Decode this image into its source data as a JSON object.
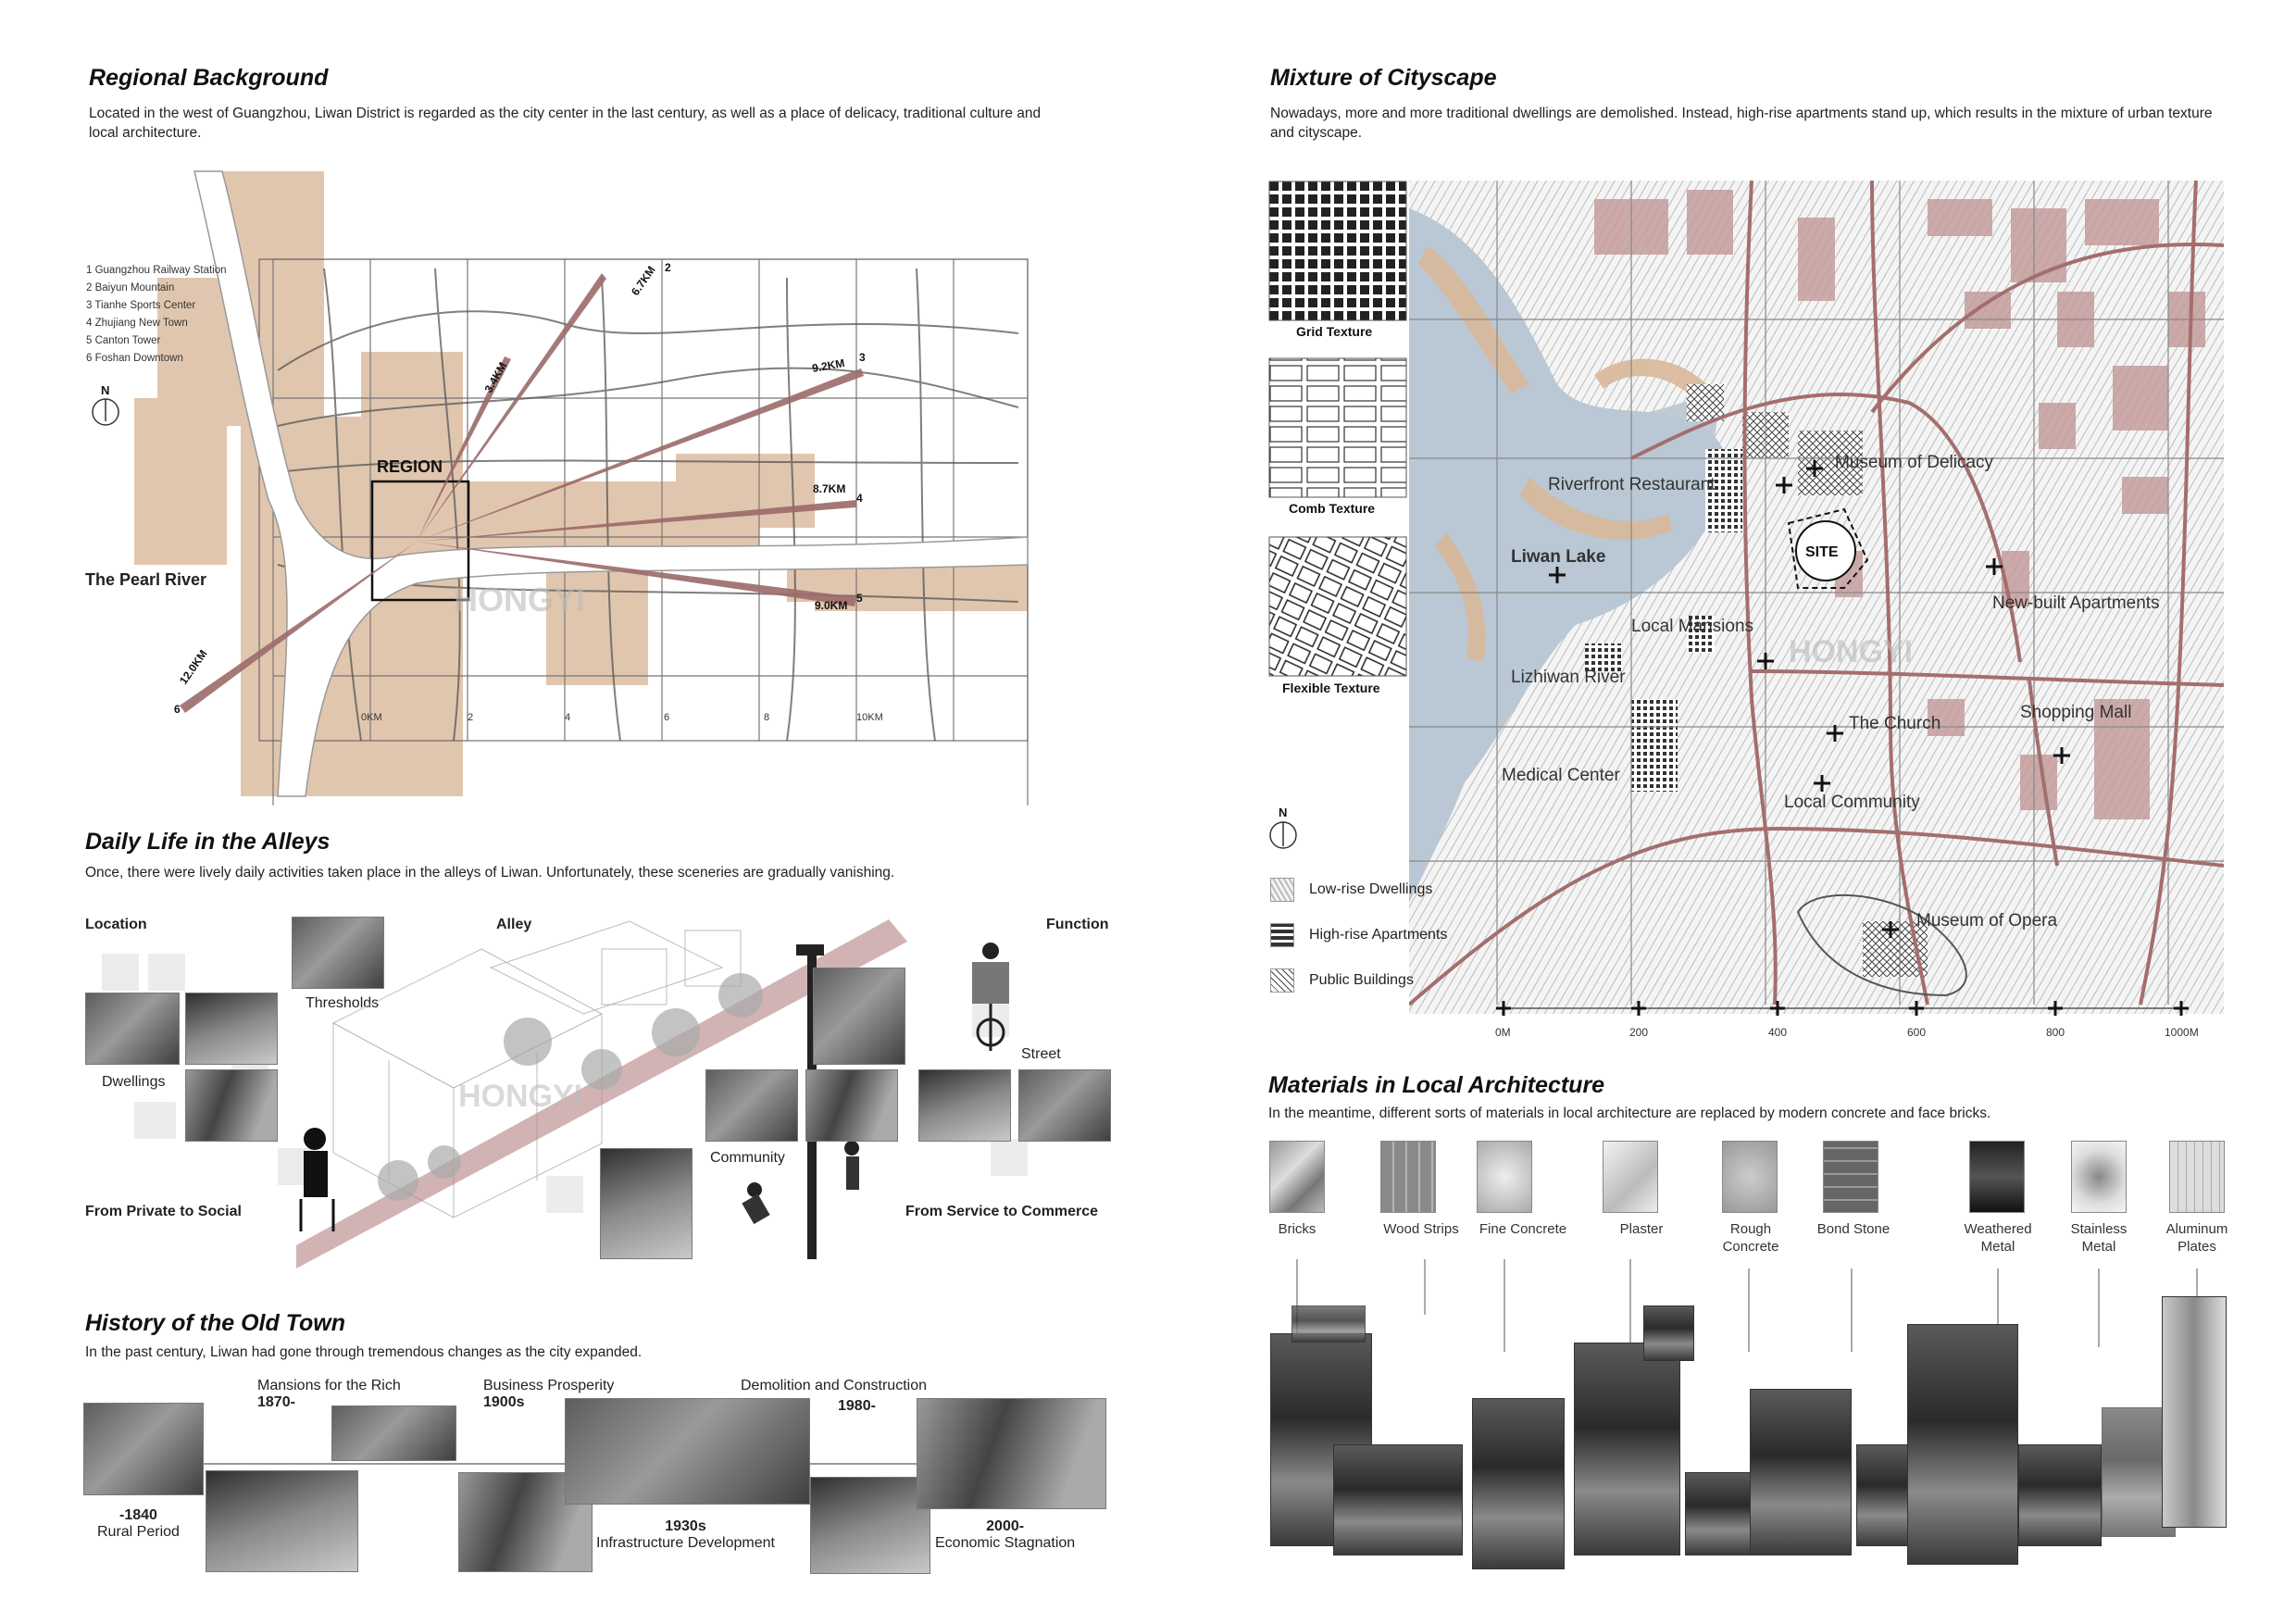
{
  "regional": {
    "title": "Regional Background",
    "desc": "Located in the west of Guangzhou, Liwan District is regarded as the city center in the last century, as well as a place of delicacy, traditional culture and local architecture.",
    "legend": [
      "1 Guangzhou Railway Station",
      "2 Baiyun Mountain",
      "3 Tianhe Sports Center",
      "4 Zhujiang New Town",
      "5 Canton Tower",
      "6 Foshan Downtown"
    ],
    "north": "N",
    "region_label": "REGION",
    "river": "The Pearl River",
    "distances": [
      "6.7KM",
      "2",
      "3.4KM",
      "9.2KM",
      "3",
      "8.7KM",
      "4",
      "9.0KM",
      "5",
      "12.0KM",
      "6"
    ],
    "scale": [
      "0KM",
      "2",
      "4",
      "6",
      "8",
      "10KM"
    ],
    "watermark": "HONGYI"
  },
  "mixture": {
    "title": "Mixture of Cityscape",
    "desc": "Nowadays, more and more traditional dwellings are demolished. Instead, high-rise apartments stand up, which results in the mixture of urban texture and cityscape.",
    "textures": [
      "Grid Texture",
      "Comb Texture",
      "Flexible Texture"
    ],
    "places": {
      "riverfront": "Riverfront Restaurant",
      "museum_delicacy": "Museum of Delicacy",
      "site": "SITE",
      "liwan_lake": "Liwan Lake",
      "new_apartments": "New-built Apartments",
      "local_mansions": "Local Mansions",
      "lizhiwan": "Lizhiwan River",
      "church": "The Church",
      "mall": "Shopping Mall",
      "medical": "Medical Center",
      "community": "Local Community",
      "opera": "Museum of Opera"
    },
    "legend": [
      "Low-rise Dwellings",
      "High-rise Apartments",
      "Public Buildings"
    ],
    "north": "N",
    "scale": [
      "0M",
      "200",
      "400",
      "600",
      "800",
      "1000M"
    ],
    "watermark": "HONGYI"
  },
  "alleys": {
    "title": "Daily Life in the Alleys",
    "desc": "Once, there were lively daily activities taken place in the alleys of Liwan. Unfortunately, these sceneries are gradually vanishing.",
    "location": "Location",
    "alley": "Alley",
    "function": "Function",
    "thresholds": "Thresholds",
    "dwellings": "Dwellings",
    "street": "Street",
    "community": "Community",
    "private_social": "From Private to Social",
    "service_commerce": "From Service to Commerce",
    "watermark": "HONGYI"
  },
  "history": {
    "title": "History of the Old Town",
    "desc": "In the past century, Liwan had gone through tremendous changes as the city expanded.",
    "items": [
      {
        "year": "-1840",
        "name": "Rural Period"
      },
      {
        "year": "1870-",
        "name": "Mansions for the Rich"
      },
      {
        "year": "1900s",
        "name": "Business Prosperity"
      },
      {
        "year": "1930s",
        "name": "Infrastructure Development"
      },
      {
        "year": "1980-",
        "name": "Demolition and Construction"
      },
      {
        "year": "2000-",
        "name": "Economic Stagnation"
      }
    ]
  },
  "materials": {
    "title": "Materials in Local Architecture",
    "desc": "In the meantime, different sorts of materials in local architecture are replaced by modern concrete and face bricks.",
    "items": [
      "Bricks",
      "Wood Strips",
      "Fine Concrete",
      "Plaster",
      "Rough Concrete",
      "Bond Stone",
      "Weathered Metal",
      "Stainless Metal",
      "Aluminum Plates"
    ]
  },
  "colors": {
    "accent": "#a46e6e",
    "map_tan": "#d9b89a",
    "water": "#b9c8d4"
  }
}
